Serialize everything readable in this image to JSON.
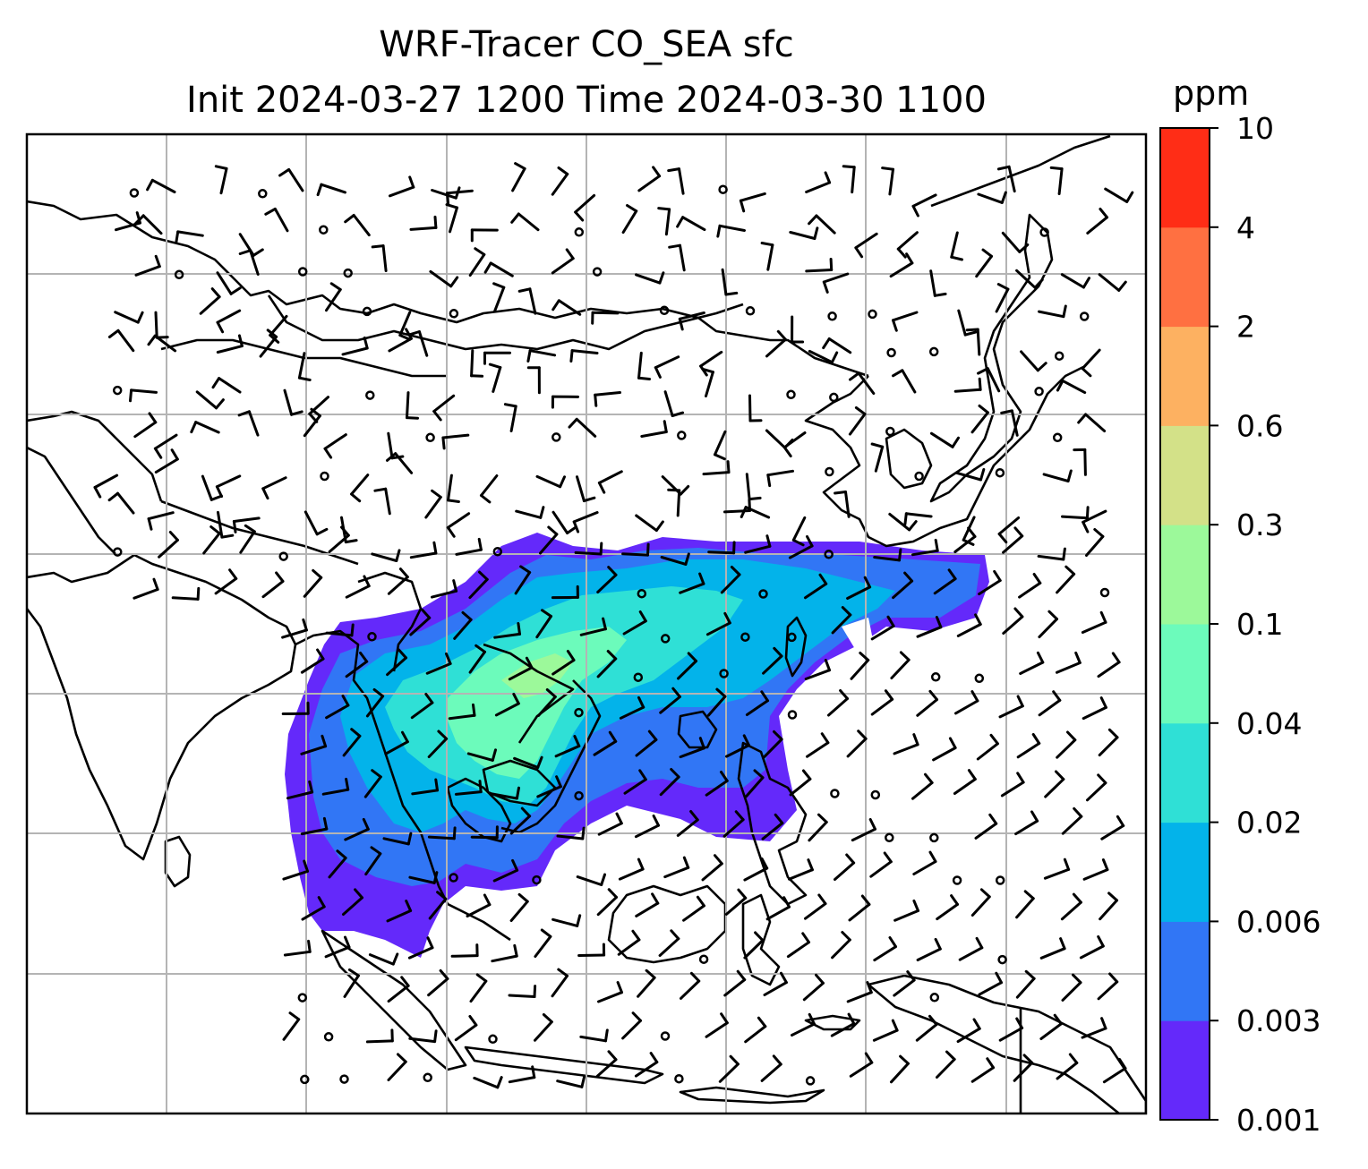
{
  "title": {
    "line1": "WRF-Tracer CO_SEA sfc",
    "line2": "Init 2024-03-27 1200 Time 2024-03-30 1100"
  },
  "colorbar": {
    "unit": "ppm",
    "levels": [
      "0.001",
      "0.003",
      "0.006",
      "0.02",
      "0.04",
      "0.1",
      "0.3",
      "0.6",
      "2",
      "4",
      "10"
    ],
    "colors": [
      "#6429fa",
      "#3176f5",
      "#03b3ea",
      "#2fe0d6",
      "#6cfbbb",
      "#9cf99a",
      "#d3e188",
      "#fdb161",
      "#ff7041",
      "#ff2d16"
    ]
  },
  "map": {
    "type": "filled contour with wind barbs",
    "variable": "CO_SEA surface tracer",
    "gridlines": true,
    "coastline_color": "#000000",
    "grid_color": "#b4b4b4"
  }
}
